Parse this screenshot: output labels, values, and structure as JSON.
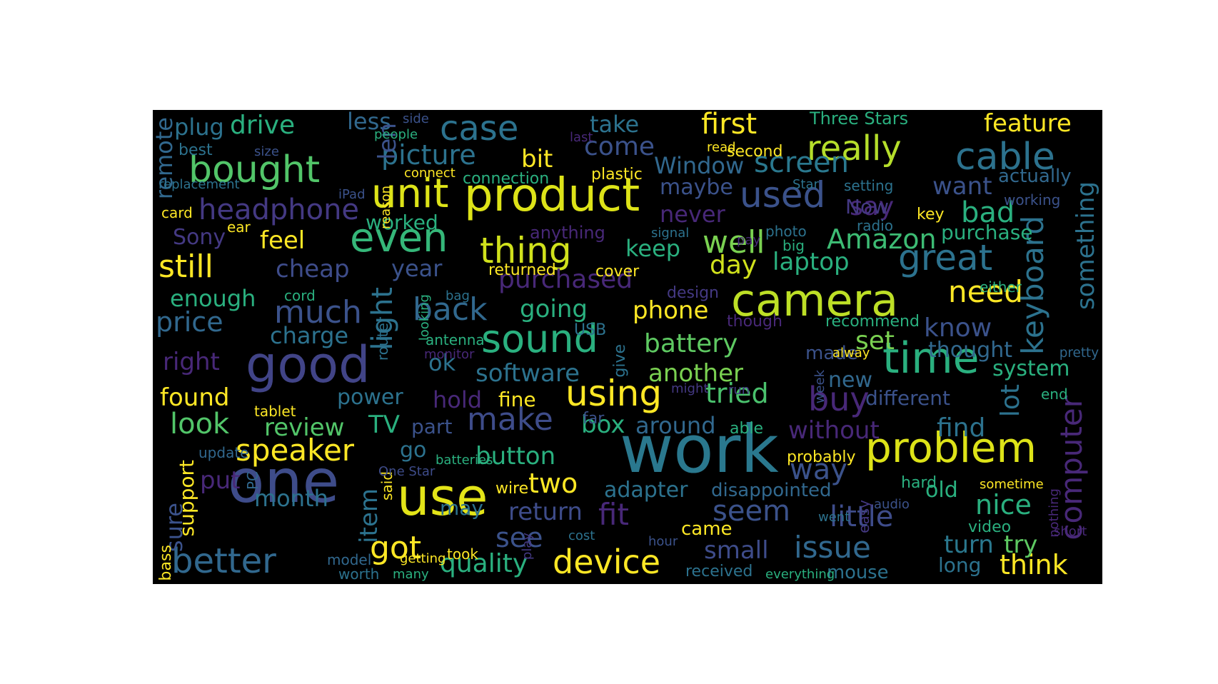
{
  "words": [
    {
      "text": "work",
      "color": "#2a788e",
      "weight": 1.0
    },
    {
      "text": "one",
      "color": "#3e4c8a",
      "weight": 0.95
    },
    {
      "text": "use",
      "color": "#e3e418",
      "weight": 0.9
    },
    {
      "text": "product",
      "color": "#dde318",
      "weight": 0.85
    },
    {
      "text": "good",
      "color": "#414487",
      "weight": 0.85
    },
    {
      "text": "camera",
      "color": "#bddf26",
      "weight": 0.8
    },
    {
      "text": "problem",
      "color": "#dde318",
      "weight": 0.78
    },
    {
      "text": "time",
      "color": "#2ab07f",
      "weight": 0.75
    },
    {
      "text": "unit",
      "color": "#dde318",
      "weight": 0.72
    },
    {
      "text": "even",
      "color": "#35b779",
      "weight": 0.72
    },
    {
      "text": "sound",
      "color": "#2ab07f",
      "weight": 0.7
    },
    {
      "text": "great",
      "color": "#2c728e",
      "weight": 0.7
    },
    {
      "text": "using",
      "color": "#fde725",
      "weight": 0.68
    },
    {
      "text": "device",
      "color": "#fde725",
      "weight": 0.65
    },
    {
      "text": "bought",
      "color": "#52c569",
      "weight": 0.65
    },
    {
      "text": "cable",
      "color": "#2c728e",
      "weight": 0.65
    },
    {
      "text": "used",
      "color": "#3b528b",
      "weight": 0.62
    },
    {
      "text": "really",
      "color": "#b5de2b",
      "weight": 0.62
    },
    {
      "text": "thing",
      "color": "#d0e11c",
      "weight": 0.62
    },
    {
      "text": "case",
      "color": "#2c728e",
      "weight": 0.6
    },
    {
      "text": "better",
      "color": "#31688e",
      "weight": 0.6
    },
    {
      "text": "screen",
      "color": "#2a788e",
      "weight": 0.58
    },
    {
      "text": "buy",
      "color": "#482878",
      "weight": 0.58
    },
    {
      "text": "need",
      "color": "#fde725",
      "weight": 0.58
    },
    {
      "text": "first",
      "color": "#fde725",
      "weight": 0.55
    },
    {
      "text": "headphone",
      "color": "#443983",
      "weight": 0.55
    },
    {
      "text": "still",
      "color": "#fde725",
      "weight": 0.55
    },
    {
      "text": "speaker",
      "color": "#fde725",
      "weight": 0.55
    },
    {
      "text": "well",
      "color": "#7ad151",
      "weight": 0.55
    },
    {
      "text": "back",
      "color": "#31688e",
      "weight": 0.55
    },
    {
      "text": "make",
      "color": "#3e4c8a",
      "weight": 0.55
    },
    {
      "text": "fit",
      "color": "#482878",
      "weight": 0.55
    },
    {
      "text": "issue",
      "color": "#31688e",
      "weight": 0.55
    },
    {
      "text": "got",
      "color": "#fde725",
      "weight": 0.52
    },
    {
      "text": "much",
      "color": "#3b528b",
      "weight": 0.52
    },
    {
      "text": "keyboard",
      "color": "#2c728e",
      "weight": 0.5
    },
    {
      "text": "computer",
      "color": "#482878",
      "weight": 0.5
    },
    {
      "text": "Amazon",
      "color": "#3dbc74",
      "weight": 0.5
    },
    {
      "text": "bad",
      "color": "#2ab07f",
      "weight": 0.5
    },
    {
      "text": "little",
      "color": "#3e4c8a",
      "weight": 0.5
    },
    {
      "text": "way",
      "color": "#3b528b",
      "weight": 0.5
    },
    {
      "text": "seem",
      "color": "#3b528b",
      "weight": 0.5
    },
    {
      "text": "tried",
      "color": "#4ac16d",
      "weight": 0.48
    },
    {
      "text": "picture",
      "color": "#2c728e",
      "weight": 0.48
    },
    {
      "text": "battery",
      "color": "#5ec962",
      "weight": 0.48
    },
    {
      "text": "look",
      "color": "#52c569",
      "weight": 0.48
    },
    {
      "text": "nice",
      "color": "#2ab07f",
      "weight": 0.48
    },
    {
      "text": "think",
      "color": "#fde725",
      "weight": 0.48
    },
    {
      "text": "see",
      "color": "#3b528b",
      "weight": 0.48
    },
    {
      "text": "quality",
      "color": "#2ab07f",
      "weight": 0.48
    },
    {
      "text": "purchased",
      "color": "#482878",
      "weight": 0.48
    },
    {
      "text": "light",
      "color": "#2c728e",
      "weight": 0.48
    },
    {
      "text": "something",
      "color": "#2c728e",
      "weight": 0.46
    },
    {
      "text": "drive",
      "color": "#2ab07f",
      "weight": 0.45
    },
    {
      "text": "feature",
      "color": "#fde725",
      "weight": 0.45
    },
    {
      "text": "cheap",
      "color": "#3e4c8a",
      "weight": 0.45
    },
    {
      "text": "price",
      "color": "#31688e",
      "weight": 0.45
    },
    {
      "text": "right",
      "color": "#482878",
      "weight": 0.45
    },
    {
      "text": "found",
      "color": "#fde725",
      "weight": 0.45
    },
    {
      "text": "review",
      "color": "#52c569",
      "weight": 0.45
    },
    {
      "text": "button",
      "color": "#2ab07f",
      "weight": 0.45
    },
    {
      "text": "two",
      "color": "#fde725",
      "weight": 0.45
    },
    {
      "text": "return",
      "color": "#3e4c8a",
      "weight": 0.45
    },
    {
      "text": "without",
      "color": "#482878",
      "weight": 0.45
    },
    {
      "text": "know",
      "color": "#3b528b",
      "weight": 0.45
    },
    {
      "text": "set",
      "color": "#7ad151",
      "weight": 0.45
    },
    {
      "text": "lot",
      "color": "#2c728e",
      "weight": 0.45
    },
    {
      "text": "turn",
      "color": "#2a788e",
      "weight": 0.42
    },
    {
      "text": "try",
      "color": "#5ec962",
      "weight": 0.42
    },
    {
      "text": "find",
      "color": "#2c728e",
      "weight": 0.42
    },
    {
      "text": "small",
      "color": "#3e4c8a",
      "weight": 0.42
    },
    {
      "text": "feel",
      "color": "#fde725",
      "weight": 0.42
    },
    {
      "text": "year",
      "color": "#3b528b",
      "weight": 0.42
    },
    {
      "text": "going",
      "color": "#2ab07f",
      "weight": 0.42
    },
    {
      "text": "phone",
      "color": "#fde725",
      "weight": 0.42
    },
    {
      "text": "day",
      "color": "#d0e11c",
      "weight": 0.42
    },
    {
      "text": "laptop",
      "color": "#2ab07f",
      "weight": 0.42
    },
    {
      "text": "keep",
      "color": "#2ab07f",
      "weight": 0.42
    },
    {
      "text": "want",
      "color": "#3b528b",
      "weight": 0.42
    },
    {
      "text": "say",
      "color": "#482878",
      "weight": 0.42
    },
    {
      "text": "Window",
      "color": "#31688e",
      "weight": 0.42
    },
    {
      "text": "come",
      "color": "#3b528b",
      "weight": 0.42
    },
    {
      "text": "take",
      "color": "#2c728e",
      "weight": 0.42
    },
    {
      "text": "less",
      "color": "#31688e",
      "weight": 0.4
    },
    {
      "text": "bit",
      "color": "#fde725",
      "weight": 0.4
    },
    {
      "text": "maybe",
      "color": "#3b528b",
      "weight": 0.38
    },
    {
      "text": "never",
      "color": "#482878",
      "weight": 0.42
    },
    {
      "text": "Now",
      "color": "#443983",
      "weight": 0.4
    },
    {
      "text": "len",
      "color": "#3b528b",
      "weight": 0.42
    },
    {
      "text": "remote",
      "color": "#31688e",
      "weight": 0.42
    },
    {
      "text": "plug",
      "color": "#2c728e",
      "weight": 0.38
    },
    {
      "text": "Sony",
      "color": "#443983",
      "weight": 0.38
    },
    {
      "text": "enough",
      "color": "#2ab07f",
      "weight": 0.4
    },
    {
      "text": "charge",
      "color": "#2c728e",
      "weight": 0.4
    },
    {
      "text": "ok",
      "color": "#2c728e",
      "weight": 0.42
    },
    {
      "text": "software",
      "color": "#2c728e",
      "weight": 0.42
    },
    {
      "text": "hold",
      "color": "#482878",
      "weight": 0.42
    },
    {
      "text": "fine",
      "color": "#fde725",
      "weight": 0.4
    },
    {
      "text": "power",
      "color": "#2c728e",
      "weight": 0.4
    },
    {
      "text": "another",
      "color": "#7ad151",
      "weight": 0.42
    },
    {
      "text": "new",
      "color": "#31688e",
      "weight": 0.4
    },
    {
      "text": "system",
      "color": "#2ab07f",
      "weight": 0.42
    },
    {
      "text": "thought",
      "color": "#31688e",
      "weight": 0.4
    },
    {
      "text": "different",
      "color": "#3b528b",
      "weight": 0.4
    },
    {
      "text": "TV",
      "color": "#2ab07f",
      "weight": 0.42
    },
    {
      "text": "part",
      "color": "#3b528b",
      "weight": 0.38
    },
    {
      "text": "box",
      "color": "#2ab07f",
      "weight": 0.4
    },
    {
      "text": "around",
      "color": "#31688e",
      "weight": 0.42
    },
    {
      "text": "go",
      "color": "#2c728e",
      "weight": 0.4
    },
    {
      "text": "put",
      "color": "#482878",
      "weight": 0.42
    },
    {
      "text": "month",
      "color": "#2c728e",
      "weight": 0.42
    },
    {
      "text": "item",
      "color": "#2c728e",
      "weight": 0.42
    },
    {
      "text": "may",
      "color": "#2c728e",
      "weight": 0.38
    },
    {
      "text": "adapter",
      "color": "#2c728e",
      "weight": 0.4
    },
    {
      "text": "old",
      "color": "#2ab07f",
      "weight": 0.4
    },
    {
      "text": "long",
      "color": "#2c728e",
      "weight": 0.38
    },
    {
      "text": "mouse",
      "color": "#2c728e",
      "weight": 0.38
    },
    {
      "text": "came",
      "color": "#fde725",
      "weight": 0.36
    },
    {
      "text": "sure",
      "color": "#3b528b",
      "weight": 0.4
    },
    {
      "text": "support",
      "color": "#fde725",
      "weight": 0.36
    },
    {
      "text": "purchase",
      "color": "#2ab07f",
      "weight": 0.36
    },
    {
      "text": "actually",
      "color": "#31688e",
      "weight": 0.36
    },
    {
      "text": "made",
      "color": "#3b528b",
      "weight": 0.34
    },
    {
      "text": "disappointed",
      "color": "#31688e",
      "weight": 0.32
    },
    {
      "text": "Three Stars",
      "color": "#2ab07f",
      "weight": 0.32
    },
    {
      "text": "worked",
      "color": "#2ab07f",
      "weight": 0.36
    },
    {
      "text": "anything",
      "color": "#482878",
      "weight": 0.32
    },
    {
      "text": "connection",
      "color": "#2ab07f",
      "weight": 0.3
    },
    {
      "text": "plastic",
      "color": "#fde725",
      "weight": 0.3
    },
    {
      "text": "second",
      "color": "#fde725",
      "weight": 0.3
    },
    {
      "text": "returned",
      "color": "#fde725",
      "weight": 0.3
    },
    {
      "text": "cover",
      "color": "#fde725",
      "weight": 0.3
    },
    {
      "text": "design",
      "color": "#443983",
      "weight": 0.28
    },
    {
      "text": "recommend",
      "color": "#2ab07f",
      "weight": 0.28
    },
    {
      "text": "though",
      "color": "#482878",
      "weight": 0.28
    },
    {
      "text": "card",
      "color": "#fde725",
      "weight": 0.28
    },
    {
      "text": "cord",
      "color": "#2ab07f",
      "weight": 0.28
    },
    {
      "text": "ear",
      "color": "#fde725",
      "weight": 0.28
    },
    {
      "text": "best",
      "color": "#2c728e",
      "weight": 0.28
    },
    {
      "text": "update",
      "color": "#31688e",
      "weight": 0.26
    },
    {
      "text": "tablet",
      "color": "#fde725",
      "weight": 0.26
    },
    {
      "text": "PC",
      "color": "#31688e",
      "weight": 0.3
    },
    {
      "text": "bass",
      "color": "#fde725",
      "weight": 0.26
    },
    {
      "text": "model",
      "color": "#31688e",
      "weight": 0.26
    },
    {
      "text": "worth",
      "color": "#2c728e",
      "weight": 0.24
    },
    {
      "text": "many",
      "color": "#2ab07f",
      "weight": 0.26
    },
    {
      "text": "took",
      "color": "#fde725",
      "weight": 0.24
    },
    {
      "text": "getting",
      "color": "#fde725",
      "weight": 0.24
    },
    {
      "text": "said",
      "color": "#fde725",
      "weight": 0.24
    },
    {
      "text": "One Star",
      "color": "#3e4c8a",
      "weight": 0.28
    },
    {
      "text": "wire",
      "color": "#fde725",
      "weight": 0.24
    },
    {
      "text": "batteries",
      "color": "#2ab07f",
      "weight": 0.24
    },
    {
      "text": "far",
      "color": "#3b528b",
      "weight": 0.26
    },
    {
      "text": "able",
      "color": "#2ab07f",
      "weight": 0.26
    },
    {
      "text": "run",
      "color": "#443983",
      "weight": 0.24
    },
    {
      "text": "might",
      "color": "#443983",
      "weight": 0.24
    },
    {
      "text": "give",
      "color": "#2c728e",
      "weight": 0.26
    },
    {
      "text": "monitor",
      "color": "#482878",
      "weight": 0.24
    },
    {
      "text": "antenna",
      "color": "#2ab07f",
      "weight": 0.26
    },
    {
      "text": "router",
      "color": "#2c728e",
      "weight": 0.24
    },
    {
      "text": "USB",
      "color": "#2c728e",
      "weight": 0.28
    },
    {
      "text": "bag",
      "color": "#2c728e",
      "weight": 0.24
    },
    {
      "text": "looking",
      "color": "#2ab07f",
      "weight": 0.24
    },
    {
      "text": "signal",
      "color": "#2c728e",
      "weight": 0.24
    },
    {
      "text": "photo",
      "color": "#2c728e",
      "weight": 0.24
    },
    {
      "text": "big",
      "color": "#2ab07f",
      "weight": 0.26
    },
    {
      "text": "pay",
      "color": "#482878",
      "weight": 0.24
    },
    {
      "text": "radio",
      "color": "#2c728e",
      "weight": 0.26
    },
    {
      "text": "week",
      "color": "#3b528b",
      "weight": 0.24
    },
    {
      "text": "alway",
      "color": "#fde725",
      "weight": 0.24
    },
    {
      "text": "probably",
      "color": "#fde725",
      "weight": 0.28
    },
    {
      "text": "went",
      "color": "#2c728e",
      "weight": 0.24
    },
    {
      "text": "easy",
      "color": "#443983",
      "weight": 0.24
    },
    {
      "text": "hard",
      "color": "#2ab07f",
      "weight": 0.26
    },
    {
      "text": "audio",
      "color": "#3b528b",
      "weight": 0.24
    },
    {
      "text": "sometime",
      "color": "#fde725",
      "weight": 0.24
    },
    {
      "text": "nothing",
      "color": "#482878",
      "weight": 0.24
    },
    {
      "text": "short",
      "color": "#482878",
      "weight": 0.24
    },
    {
      "text": "video",
      "color": "#2ab07f",
      "weight": 0.28
    },
    {
      "text": "end",
      "color": "#2ab07f",
      "weight": 0.24
    },
    {
      "text": "pretty",
      "color": "#31688e",
      "weight": 0.24
    },
    {
      "text": "either",
      "color": "#2ab07f",
      "weight": 0.24
    },
    {
      "text": "working",
      "color": "#3b528b",
      "weight": 0.24
    },
    {
      "text": "key",
      "color": "#fde725",
      "weight": 0.26
    },
    {
      "text": "setting",
      "color": "#2c728e",
      "weight": 0.24
    },
    {
      "text": "Star",
      "color": "#2c728e",
      "weight": 0.24
    },
    {
      "text": "read",
      "color": "#fde725",
      "weight": 0.24
    },
    {
      "text": "connect",
      "color": "#fde725",
      "weight": 0.26
    },
    {
      "text": "reason",
      "color": "#fde725",
      "weight": 0.24
    },
    {
      "text": "iPad",
      "color": "#3b528b",
      "weight": 0.24
    },
    {
      "text": "replacement",
      "color": "#2c728e",
      "weight": 0.26
    },
    {
      "text": "size",
      "color": "#3b528b",
      "weight": 0.24
    },
    {
      "text": "side",
      "color": "#3b528b",
      "weight": 0.24
    },
    {
      "text": "people",
      "color": "#2ab07f",
      "weight": 0.24
    },
    {
      "text": "last",
      "color": "#482878",
      "weight": 0.24
    },
    {
      "text": "cost",
      "color": "#2c728e",
      "weight": 0.24
    },
    {
      "text": "play",
      "color": "#443983",
      "weight": 0.24
    },
    {
      "text": "hour",
      "color": "#3b528b",
      "weight": 0.24
    },
    {
      "text": "received",
      "color": "#2c728e",
      "weight": 0.26
    },
    {
      "text": "everything",
      "color": "#2ab07f",
      "weight": 0.24
    }
  ]
}
